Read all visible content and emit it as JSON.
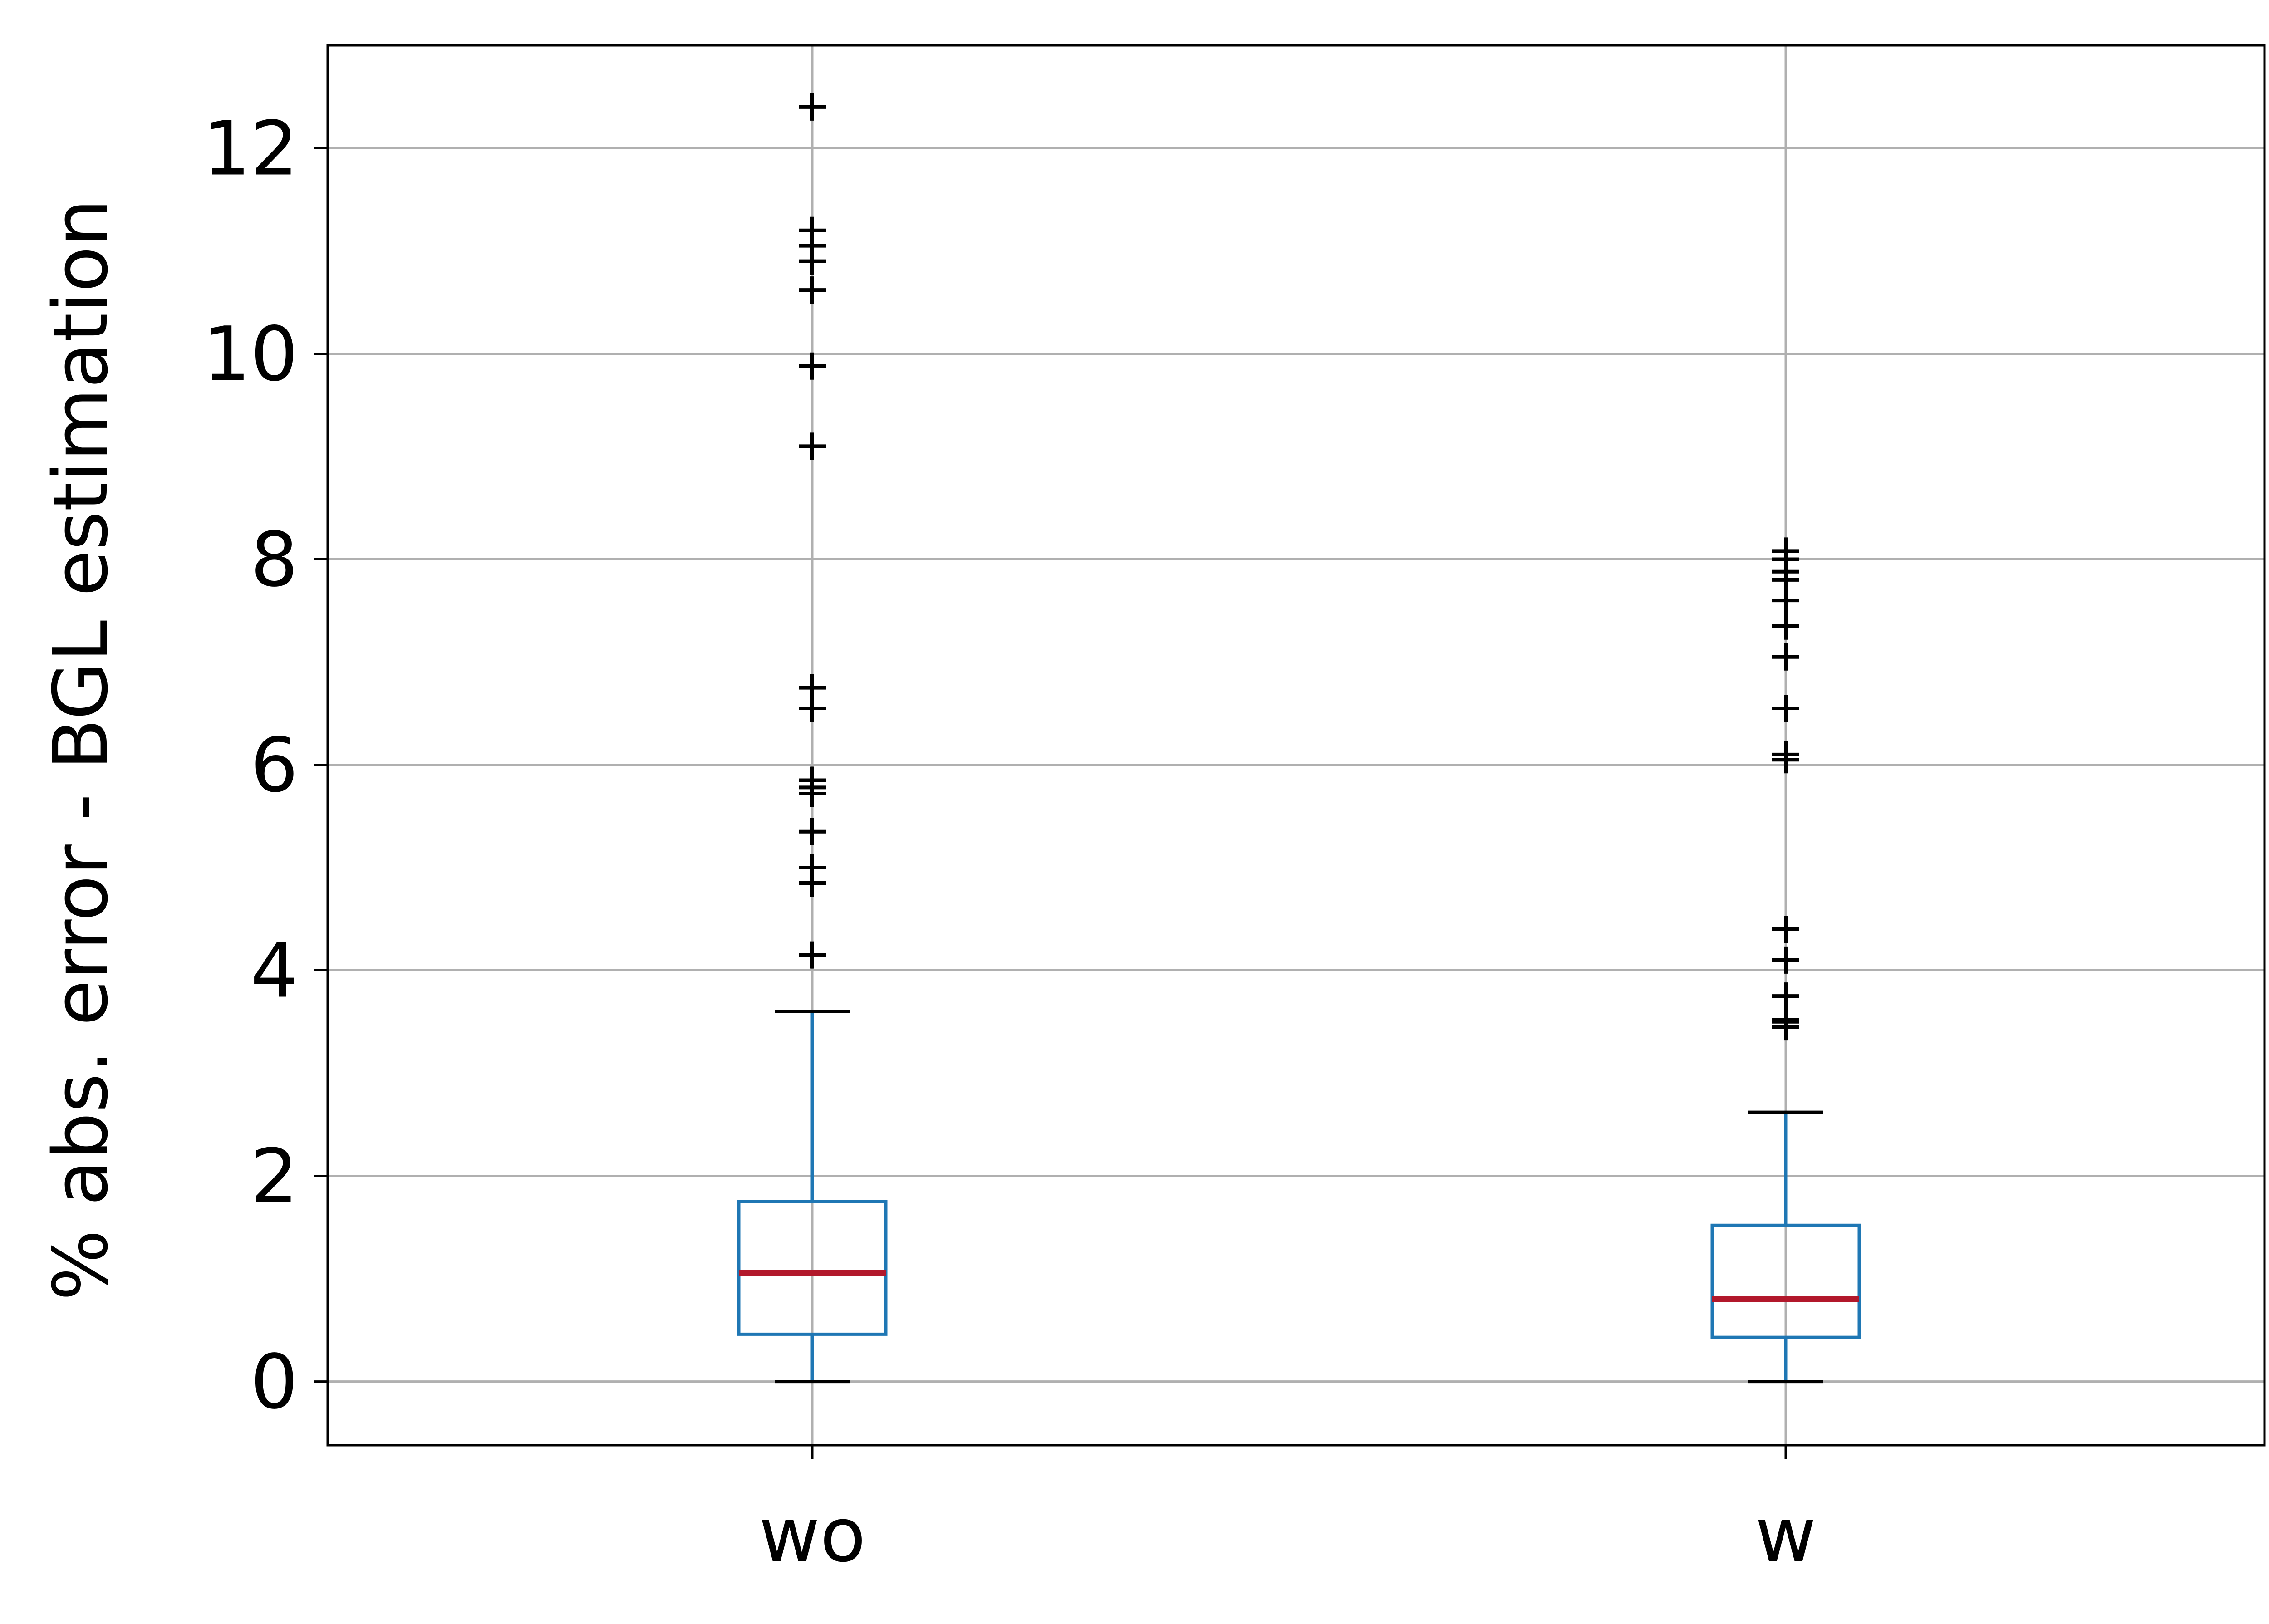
{
  "chart_data": {
    "type": "box",
    "ylabel": "% abs. error - BGL estimation",
    "xlabel": "",
    "ylim": [
      -0.62,
      13.0
    ],
    "yticks": [
      0,
      2,
      4,
      6,
      8,
      10,
      12
    ],
    "ytick_labels": [
      "0",
      "2",
      "4",
      "6",
      "8",
      "10",
      "12"
    ],
    "grid": true,
    "categories": [
      "wo",
      "w"
    ],
    "boxes": [
      {
        "label": "wo",
        "whisker_low": 0.0,
        "q1": 0.46,
        "median": 1.06,
        "q3": 1.75,
        "whisker_high": 3.6,
        "outliers": [
          4.15,
          4.85,
          5.0,
          5.35,
          5.72,
          5.78,
          5.85,
          6.55,
          6.75,
          9.1,
          9.88,
          10.62,
          10.9,
          11.05,
          11.2,
          12.4
        ]
      },
      {
        "label": "w",
        "whisker_low": 0.0,
        "q1": 0.43,
        "median": 0.8,
        "q3": 1.52,
        "whisker_high": 2.62,
        "outliers": [
          3.45,
          3.5,
          3.52,
          3.75,
          4.1,
          4.4,
          6.05,
          6.1,
          6.55,
          7.05,
          7.35,
          7.6,
          7.8,
          7.88,
          8.0,
          8.08
        ]
      }
    ],
    "colors": {
      "box": "#1f77b4",
      "median": "#b2182b",
      "whisker_cap": "#000000",
      "outlier": "#000000",
      "grid": "#b0b0b0"
    }
  }
}
